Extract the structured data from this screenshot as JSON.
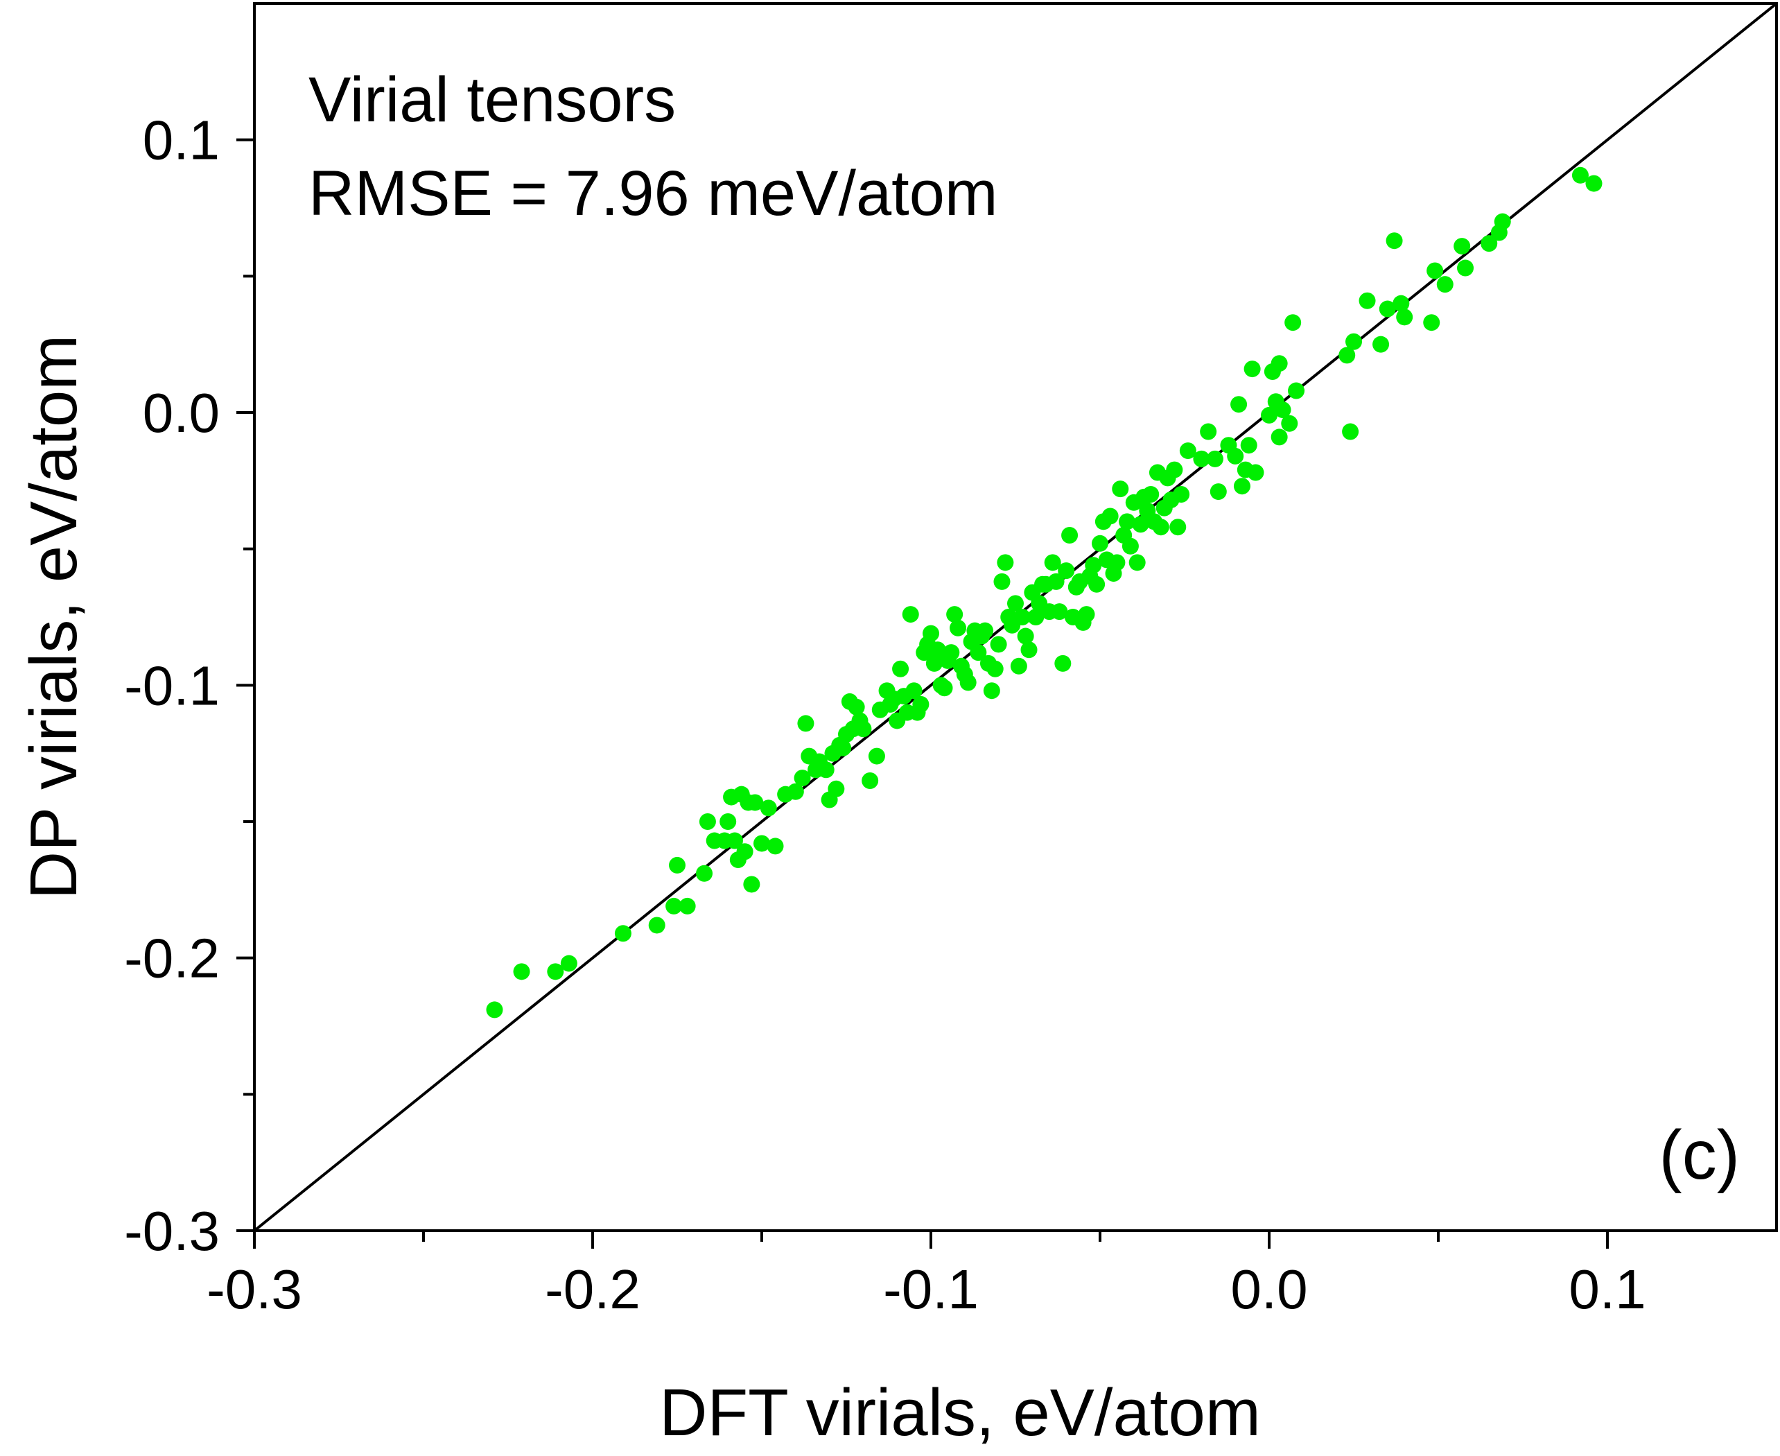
{
  "chart_data": {
    "type": "scatter",
    "title": "",
    "xlabel": "DFT virials, eV/atom",
    "ylabel": "DP virials, eV/atom",
    "xlim": [
      -0.3,
      0.15
    ],
    "ylim": [
      -0.3,
      0.15
    ],
    "grid": false,
    "colors": {
      "points": "#00ee00",
      "line": "#000000",
      "axes": "#000000"
    },
    "xticks": [
      {
        "value": -0.3,
        "label": "-0.3"
      },
      {
        "value": -0.2,
        "label": "-0.2"
      },
      {
        "value": -0.1,
        "label": "-0.1"
      },
      {
        "value": 0.0,
        "label": "0.0"
      },
      {
        "value": 0.1,
        "label": "0.1"
      }
    ],
    "yticks": [
      {
        "value": -0.3,
        "label": "-0.3"
      },
      {
        "value": -0.2,
        "label": "-0.2"
      },
      {
        "value": -0.1,
        "label": "-0.1"
      },
      {
        "value": 0.0,
        "label": "0.0"
      },
      {
        "value": 0.1,
        "label": "0.1"
      }
    ],
    "minor_ticks": [
      -0.25,
      -0.15,
      -0.05,
      0.05
    ],
    "annotations": [
      "Virial tensors",
      "RMSE = 7.96 meV/atom"
    ],
    "panel_label": "(c)",
    "reference_line": {
      "name": "y = x",
      "from": [
        -0.3,
        -0.3
      ],
      "to": [
        0.15,
        0.15
      ]
    },
    "points": [
      [
        -0.229,
        -0.219
      ],
      [
        -0.221,
        -0.205
      ],
      [
        -0.211,
        -0.205
      ],
      [
        -0.207,
        -0.202
      ],
      [
        -0.191,
        -0.191
      ],
      [
        -0.181,
        -0.188
      ],
      [
        -0.176,
        -0.181
      ],
      [
        -0.175,
        -0.166
      ],
      [
        -0.172,
        -0.181
      ],
      [
        -0.167,
        -0.169
      ],
      [
        -0.166,
        -0.15
      ],
      [
        -0.164,
        -0.157
      ],
      [
        -0.161,
        -0.157
      ],
      [
        -0.16,
        -0.15
      ],
      [
        -0.159,
        -0.141
      ],
      [
        -0.158,
        -0.157
      ],
      [
        -0.157,
        -0.164
      ],
      [
        -0.156,
        -0.14
      ],
      [
        -0.155,
        -0.161
      ],
      [
        -0.154,
        -0.143
      ],
      [
        -0.153,
        -0.173
      ],
      [
        -0.152,
        -0.143
      ],
      [
        -0.15,
        -0.158
      ],
      [
        -0.148,
        -0.145
      ],
      [
        -0.146,
        -0.159
      ],
      [
        -0.143,
        -0.14
      ],
      [
        -0.14,
        -0.139
      ],
      [
        -0.138,
        -0.134
      ],
      [
        -0.137,
        -0.114
      ],
      [
        -0.136,
        -0.126
      ],
      [
        -0.134,
        -0.131
      ],
      [
        -0.133,
        -0.128
      ],
      [
        -0.131,
        -0.131
      ],
      [
        -0.13,
        -0.142
      ],
      [
        -0.129,
        -0.125
      ],
      [
        -0.128,
        -0.138
      ],
      [
        -0.127,
        -0.122
      ],
      [
        -0.126,
        -0.123
      ],
      [
        -0.125,
        -0.118
      ],
      [
        -0.124,
        -0.106
      ],
      [
        -0.123,
        -0.116
      ],
      [
        -0.122,
        -0.108
      ],
      [
        -0.121,
        -0.113
      ],
      [
        -0.12,
        -0.116
      ],
      [
        -0.118,
        -0.135
      ],
      [
        -0.116,
        -0.126
      ],
      [
        -0.115,
        -0.109
      ],
      [
        -0.113,
        -0.102
      ],
      [
        -0.112,
        -0.107
      ],
      [
        -0.111,
        -0.105
      ],
      [
        -0.11,
        -0.113
      ],
      [
        -0.109,
        -0.094
      ],
      [
        -0.108,
        -0.104
      ],
      [
        -0.107,
        -0.11
      ],
      [
        -0.106,
        -0.074
      ],
      [
        -0.105,
        -0.102
      ],
      [
        -0.104,
        -0.11
      ],
      [
        -0.103,
        -0.107
      ],
      [
        -0.102,
        -0.088
      ],
      [
        -0.101,
        -0.085
      ],
      [
        -0.1,
        -0.081
      ],
      [
        -0.099,
        -0.092
      ],
      [
        -0.098,
        -0.087
      ],
      [
        -0.097,
        -0.1
      ],
      [
        -0.096,
        -0.101
      ],
      [
        -0.095,
        -0.091
      ],
      [
        -0.094,
        -0.088
      ],
      [
        -0.093,
        -0.074
      ],
      [
        -0.092,
        -0.079
      ],
      [
        -0.091,
        -0.093
      ],
      [
        -0.09,
        -0.096
      ],
      [
        -0.089,
        -0.099
      ],
      [
        -0.088,
        -0.084
      ],
      [
        -0.087,
        -0.08
      ],
      [
        -0.086,
        -0.088
      ],
      [
        -0.085,
        -0.082
      ],
      [
        -0.084,
        -0.08
      ],
      [
        -0.083,
        -0.092
      ],
      [
        -0.082,
        -0.102
      ],
      [
        -0.081,
        -0.094
      ],
      [
        -0.08,
        -0.085
      ],
      [
        -0.079,
        -0.062
      ],
      [
        -0.078,
        -0.055
      ],
      [
        -0.077,
        -0.075
      ],
      [
        -0.076,
        -0.078
      ],
      [
        -0.075,
        -0.07
      ],
      [
        -0.074,
        -0.093
      ],
      [
        -0.073,
        -0.075
      ],
      [
        -0.072,
        -0.082
      ],
      [
        -0.071,
        -0.087
      ],
      [
        -0.07,
        -0.066
      ],
      [
        -0.069,
        -0.075
      ],
      [
        -0.068,
        -0.07
      ],
      [
        -0.067,
        -0.063
      ],
      [
        -0.066,
        -0.063
      ],
      [
        -0.065,
        -0.073
      ],
      [
        -0.064,
        -0.055
      ],
      [
        -0.063,
        -0.062
      ],
      [
        -0.062,
        -0.073
      ],
      [
        -0.061,
        -0.092
      ],
      [
        -0.06,
        -0.058
      ],
      [
        -0.059,
        -0.045
      ],
      [
        -0.058,
        -0.075
      ],
      [
        -0.057,
        -0.064
      ],
      [
        -0.056,
        -0.062
      ],
      [
        -0.055,
        -0.077
      ],
      [
        -0.054,
        -0.074
      ],
      [
        -0.053,
        -0.06
      ],
      [
        -0.052,
        -0.056
      ],
      [
        -0.051,
        -0.063
      ],
      [
        -0.05,
        -0.048
      ],
      [
        -0.049,
        -0.04
      ],
      [
        -0.048,
        -0.054
      ],
      [
        -0.047,
        -0.038
      ],
      [
        -0.046,
        -0.059
      ],
      [
        -0.045,
        -0.055
      ],
      [
        -0.044,
        -0.028
      ],
      [
        -0.043,
        -0.045
      ],
      [
        -0.042,
        -0.04
      ],
      [
        -0.041,
        -0.049
      ],
      [
        -0.04,
        -0.033
      ],
      [
        -0.039,
        -0.055
      ],
      [
        -0.038,
        -0.041
      ],
      [
        -0.037,
        -0.031
      ],
      [
        -0.036,
        -0.036
      ],
      [
        -0.035,
        -0.03
      ],
      [
        -0.034,
        -0.04
      ],
      [
        -0.033,
        -0.022
      ],
      [
        -0.032,
        -0.042
      ],
      [
        -0.031,
        -0.035
      ],
      [
        -0.03,
        -0.024
      ],
      [
        -0.029,
        -0.032
      ],
      [
        -0.028,
        -0.021
      ],
      [
        -0.027,
        -0.042
      ],
      [
        -0.026,
        -0.03
      ],
      [
        -0.024,
        -0.014
      ],
      [
        -0.02,
        -0.017
      ],
      [
        -0.018,
        -0.007
      ],
      [
        -0.016,
        -0.017
      ],
      [
        -0.015,
        -0.029
      ],
      [
        -0.012,
        -0.012
      ],
      [
        -0.01,
        -0.016
      ],
      [
        -0.009,
        0.003
      ],
      [
        -0.008,
        -0.027
      ],
      [
        -0.007,
        -0.021
      ],
      [
        -0.006,
        -0.012
      ],
      [
        -0.005,
        0.016
      ],
      [
        -0.004,
        -0.022
      ],
      [
        0.0,
        -0.001
      ],
      [
        0.001,
        0.015
      ],
      [
        0.002,
        0.004
      ],
      [
        0.003,
        0.018
      ],
      [
        0.003,
        -0.009
      ],
      [
        0.004,
        0.001
      ],
      [
        0.006,
        -0.004
      ],
      [
        0.007,
        0.033
      ],
      [
        0.008,
        0.008
      ],
      [
        0.023,
        0.021
      ],
      [
        0.024,
        -0.007
      ],
      [
        0.025,
        0.026
      ],
      [
        0.029,
        0.041
      ],
      [
        0.033,
        0.025
      ],
      [
        0.035,
        0.038
      ],
      [
        0.037,
        0.063
      ],
      [
        0.039,
        0.04
      ],
      [
        0.04,
        0.035
      ],
      [
        0.048,
        0.033
      ],
      [
        0.049,
        0.052
      ],
      [
        0.052,
        0.047
      ],
      [
        0.057,
        0.061
      ],
      [
        0.058,
        0.053
      ],
      [
        0.065,
        0.062
      ],
      [
        0.068,
        0.066
      ],
      [
        0.069,
        0.07
      ],
      [
        0.092,
        0.087
      ],
      [
        0.096,
        0.084
      ]
    ]
  }
}
